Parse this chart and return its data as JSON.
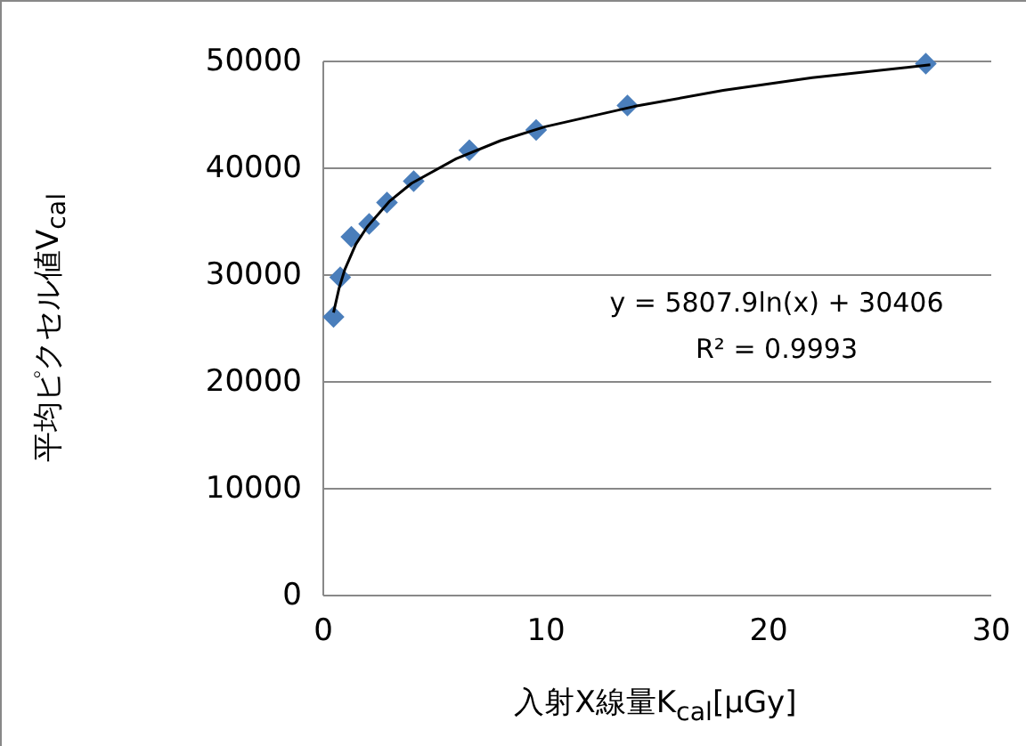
{
  "chart_data": {
    "type": "scatter",
    "xlabel": "入射X線量K$_{cal}$[μGy]",
    "ylabel": "平均ピクセル値V$_{cal}$",
    "xlim": [
      0,
      30
    ],
    "xticks": [
      0,
      10,
      20,
      30
    ],
    "ylim": [
      0,
      50000
    ],
    "yticks": [
      0,
      10000,
      20000,
      30000,
      40000,
      50000
    ],
    "grid": "y",
    "annotations": [
      "y = 5807.9ln(x) + 30406",
      "R² = 0.9993"
    ],
    "series": [
      {
        "marker": "diamond",
        "color": "#4a7ebb",
        "x": [
          0.5,
          0.8,
          1.3,
          2.1,
          2.9,
          4.1,
          6.6,
          9.6,
          13.7,
          27.1
        ],
        "values": [
          26000,
          29700,
          33500,
          34700,
          36700,
          38700,
          41600,
          43500,
          45800,
          49700
        ]
      },
      {
        "type": "line",
        "marker": "none",
        "line_style": "solid",
        "color": "#000000",
        "x": [
          0.5,
          0.75,
          1,
          1.5,
          2,
          3,
          4,
          6,
          8,
          10,
          14,
          18,
          22,
          27.3
        ],
        "values": [
          26400,
          28700,
          30400,
          32800,
          34400,
          36800,
          38500,
          40800,
          42500,
          43800,
          45700,
          47200,
          48400,
          49600
        ]
      }
    ]
  }
}
